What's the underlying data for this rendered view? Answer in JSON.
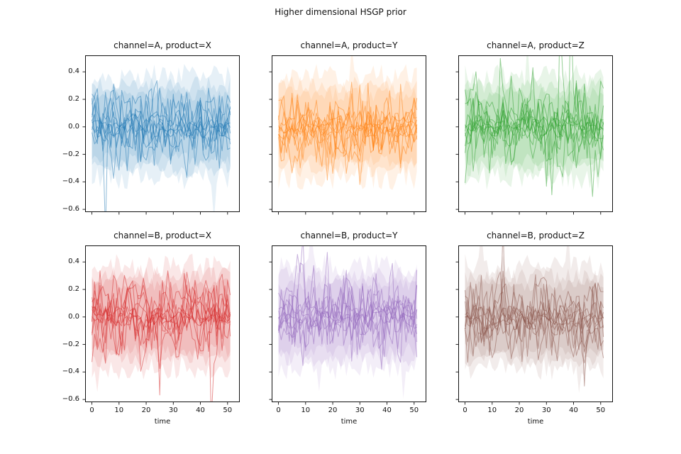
{
  "chart_data": {
    "type": "line",
    "title": "Higher dimensional HSGP prior",
    "xlabel": "time",
    "layout": {
      "rows": 2,
      "cols": 3,
      "shared_x": true,
      "shared_y": true,
      "grid": false,
      "legend": false
    },
    "xlim": [
      -2.5,
      54.5
    ],
    "ylim": [
      -0.62,
      0.52
    ],
    "x_range": [
      0,
      51
    ],
    "n_timepoints": 52,
    "xticks": [
      0,
      10,
      20,
      30,
      40,
      50
    ],
    "yticks": [
      0.4,
      0.2,
      0.0,
      -0.2,
      -0.4,
      -0.6
    ],
    "description": "2x3 grid of HSGP prior draws. Each panel overlays ~11 noisy random sample paths centered on 0 (typical sd ~0.13, occasional spikes to about -0.55) plus translucent jagged uncertainty bands spanning roughly +/-0.45. Sample values are deterministic functions of each panel's seed.",
    "series_style": {
      "n_sample_lines": 11,
      "n_wild_lines": 7,
      "n_core_lines": 4,
      "line_opacity": 0.5,
      "wild_line_sd": 0.13,
      "core_line_sd": 0.045,
      "band_layers": 3,
      "band_layer_opacity": 0.11,
      "band_halfwidths": [
        0.37,
        0.3,
        0.24
      ],
      "band_jitter": [
        0.09,
        0.07,
        0.055
      ]
    },
    "panels": [
      {
        "title": "channel=A, product=X",
        "channel": "A",
        "product": "X",
        "color": "#1f77b4",
        "row": 0,
        "col": 0,
        "seed": 101
      },
      {
        "title": "channel=A, product=Y",
        "channel": "A",
        "product": "Y",
        "color": "#ff7f0e",
        "row": 0,
        "col": 1,
        "seed": 202
      },
      {
        "title": "channel=A, product=Z",
        "channel": "A",
        "product": "Z",
        "color": "#2ca02c",
        "row": 0,
        "col": 2,
        "seed": 303
      },
      {
        "title": "channel=B, product=X",
        "channel": "B",
        "product": "X",
        "color": "#d62728",
        "row": 1,
        "col": 0,
        "seed": 404
      },
      {
        "title": "channel=B, product=Y",
        "channel": "B",
        "product": "Y",
        "color": "#9467bd",
        "row": 1,
        "col": 1,
        "seed": 505
      },
      {
        "title": "channel=B, product=Z",
        "channel": "B",
        "product": "Z",
        "color": "#8c564b",
        "row": 1,
        "col": 2,
        "seed": 606
      }
    ],
    "text_color": "#111111",
    "background": "#ffffff"
  }
}
